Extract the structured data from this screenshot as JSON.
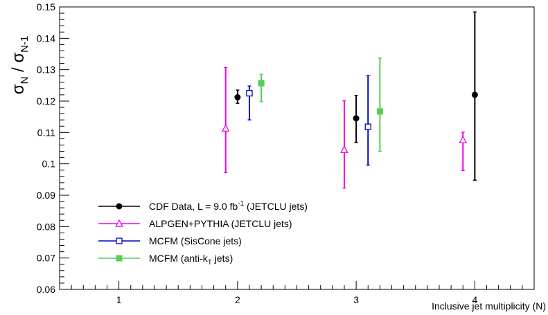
{
  "chart_data": {
    "type": "scatter",
    "xlabel": "Inclusive jet multiplicity (N)",
    "ylabel": {
      "main": "σ",
      "sub1": "N",
      "sep": " / ",
      "main2": "σ",
      "sub2": "N-1"
    },
    "xlim": [
      0.5,
      4.5
    ],
    "ylim": [
      0.06,
      0.15
    ],
    "x_ticks": [
      "1",
      "2",
      "3",
      "4"
    ],
    "x_tick_values": [
      1,
      2,
      3,
      4
    ],
    "y_ticks": [
      "0.06",
      "0.07",
      "0.08",
      "0.09",
      "0.1",
      "0.11",
      "0.12",
      "0.13",
      "0.14",
      "0.15"
    ],
    "y_tick_values": [
      0.06,
      0.07,
      0.08,
      0.09,
      0.1,
      0.11,
      0.12,
      0.13,
      0.14,
      0.15
    ],
    "grid": false,
    "legend_position": "bottom-left",
    "series": [
      {
        "key": "cdf",
        "legend_parts": {
          "pre": "CDF Data, L = 9.0 fb",
          "sup": "-1",
          "post": "  (JETCLU jets)"
        },
        "color": "#000000",
        "marker": "filled-circle",
        "points": [
          {
            "x": 2.0,
            "y": 0.1212,
            "lo": 0.1193,
            "hi": 0.1235
          },
          {
            "x": 3.0,
            "y": 0.1145,
            "lo": 0.1068,
            "hi": 0.1218
          },
          {
            "x": 4.0,
            "y": 0.122,
            "lo": 0.0948,
            "hi": 0.1484
          }
        ]
      },
      {
        "key": "alpgen",
        "legend_parts": {
          "pre": "ALPGEN+PYTHIA (JETCLU jets)",
          "sup": "",
          "post": ""
        },
        "color": "#ee00ee",
        "marker": "open-triangle",
        "points": [
          {
            "x": 1.9,
            "y": 0.1113,
            "lo": 0.0972,
            "hi": 0.1307
          },
          {
            "x": 2.9,
            "y": 0.1045,
            "lo": 0.0923,
            "hi": 0.1201
          },
          {
            "x": 3.9,
            "y": 0.1076,
            "lo": 0.0979,
            "hi": 0.1101
          }
        ]
      },
      {
        "key": "mcfm_siscone",
        "legend_parts": {
          "pre": "MCFM (SisCone jets)",
          "sup": "",
          "post": ""
        },
        "color": "#0000cc",
        "marker": "open-square",
        "points": [
          {
            "x": 2.1,
            "y": 0.1225,
            "lo": 0.114,
            "hi": 0.1248
          },
          {
            "x": 3.1,
            "y": 0.1118,
            "lo": 0.0996,
            "hi": 0.1281
          }
        ]
      },
      {
        "key": "mcfm_antikt",
        "legend_parts": {
          "pre": "MCFM (anti-k",
          "sub": "T",
          "post": " jets)"
        },
        "color": "#55cc55",
        "marker": "filled-square",
        "points": [
          {
            "x": 2.2,
            "y": 0.1257,
            "lo": 0.1198,
            "hi": 0.1285
          },
          {
            "x": 3.2,
            "y": 0.1167,
            "lo": 0.104,
            "hi": 0.1337
          }
        ]
      }
    ]
  }
}
